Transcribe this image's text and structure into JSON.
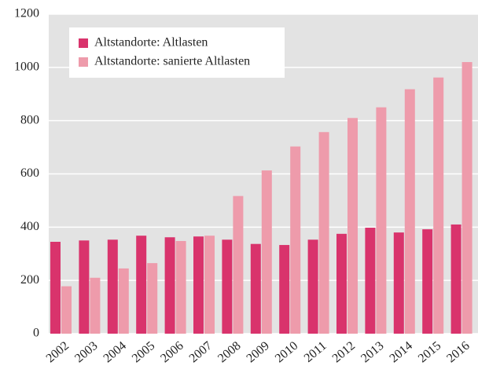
{
  "chart_data": {
    "type": "bar",
    "categories": [
      "2002",
      "2003",
      "2004",
      "2005",
      "2006",
      "2007",
      "2008",
      "2009",
      "2010",
      "2011",
      "2012",
      "2013",
      "2014",
      "2015",
      "2016"
    ],
    "series": [
      {
        "name": "Altstandorte: Altlasten",
        "color": "#d9336c",
        "values": [
          345,
          350,
          353,
          368,
          362,
          365,
          353,
          337,
          333,
          353,
          375,
          398,
          380,
          392,
          410
        ]
      },
      {
        "name": "Altstandorte: sanierte Altlasten",
        "color": "#ee9bab",
        "values": [
          178,
          210,
          245,
          265,
          348,
          368,
          517,
          613,
          703,
          757,
          810,
          850,
          918,
          962,
          1020
        ]
      }
    ],
    "ylim": [
      0,
      1200
    ],
    "yticks": [
      0,
      200,
      400,
      600,
      800,
      1000,
      1200
    ],
    "grid": true,
    "legend": "top-left"
  }
}
